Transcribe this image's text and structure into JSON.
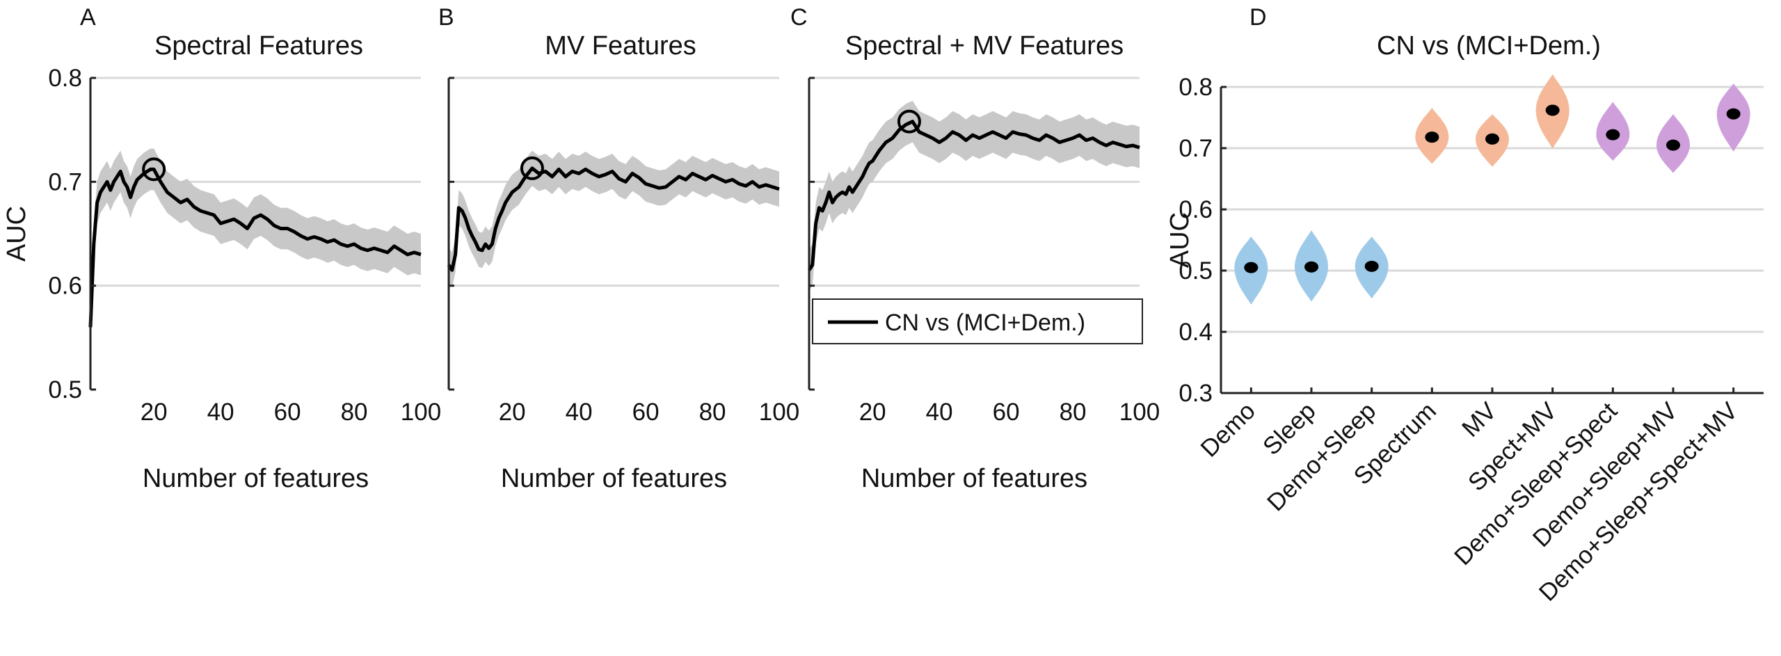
{
  "colors": {
    "line": "#000000",
    "band": "#c8c8c8",
    "grid": "#d9d9d9",
    "blue_violin": "#9ecae9",
    "orange_violin": "#f5b99a",
    "purple_violin": "#cf9fdc",
    "median_dot": "#000000"
  },
  "chart_data": [
    {
      "id": "A",
      "panel_letter": "A",
      "type": "line",
      "title": "Spectral Features",
      "xlabel": "Number of features",
      "ylabel": "AUC",
      "xlim": [
        1,
        100
      ],
      "ylim": [
        0.5,
        0.8
      ],
      "xticks": [
        20,
        40,
        60,
        80,
        100
      ],
      "yticks": [
        0.5,
        0.6,
        0.7,
        0.8
      ],
      "xtick_labels": [
        "20",
        "40",
        "60",
        "80",
        "100"
      ],
      "ytick_labels": [
        "0.5",
        "0.6",
        "0.7",
        "0.8"
      ],
      "grid": "horizontal",
      "band_halfwidth": 0.02,
      "marker": {
        "x": 20,
        "y": 0.712
      },
      "series": [
        {
          "name": "CN vs (MCI+Dem.)",
          "x": [
            1,
            2,
            3,
            4,
            5,
            6,
            7,
            8,
            9,
            10,
            11,
            12,
            13,
            14,
            15,
            16,
            17,
            18,
            19,
            20,
            22,
            24,
            26,
            28,
            30,
            32,
            34,
            36,
            38,
            40,
            42,
            44,
            46,
            48,
            50,
            52,
            54,
            56,
            58,
            60,
            62,
            64,
            66,
            68,
            70,
            72,
            74,
            76,
            78,
            80,
            82,
            84,
            86,
            88,
            90,
            92,
            94,
            96,
            98,
            100
          ],
          "y": [
            0.56,
            0.64,
            0.68,
            0.69,
            0.695,
            0.7,
            0.692,
            0.7,
            0.705,
            0.71,
            0.7,
            0.695,
            0.685,
            0.695,
            0.702,
            0.705,
            0.708,
            0.71,
            0.712,
            0.712,
            0.7,
            0.69,
            0.685,
            0.68,
            0.683,
            0.676,
            0.672,
            0.67,
            0.668,
            0.66,
            0.662,
            0.664,
            0.66,
            0.655,
            0.665,
            0.668,
            0.664,
            0.658,
            0.655,
            0.655,
            0.652,
            0.648,
            0.645,
            0.647,
            0.645,
            0.642,
            0.644,
            0.64,
            0.638,
            0.64,
            0.636,
            0.634,
            0.636,
            0.634,
            0.632,
            0.638,
            0.634,
            0.63,
            0.632,
            0.63
          ]
        }
      ]
    },
    {
      "id": "B",
      "panel_letter": "B",
      "type": "line",
      "title": "MV Features",
      "xlabel": "Number of features",
      "ylabel": "",
      "xlim": [
        1,
        100
      ],
      "ylim": [
        0.5,
        0.8
      ],
      "xticks": [
        20,
        40,
        60,
        80,
        100
      ],
      "yticks": [
        0.5,
        0.6,
        0.7,
        0.8
      ],
      "xtick_labels": [
        "20",
        "40",
        "60",
        "80",
        "100"
      ],
      "grid": "horizontal",
      "band_halfwidth": 0.017,
      "marker": {
        "x": 26,
        "y": 0.713
      },
      "series": [
        {
          "name": "CN vs (MCI+Dem.)",
          "x": [
            1,
            2,
            3,
            4,
            5,
            6,
            7,
            8,
            9,
            10,
            11,
            12,
            13,
            14,
            15,
            16,
            17,
            18,
            19,
            20,
            22,
            24,
            26,
            28,
            30,
            32,
            34,
            36,
            38,
            40,
            42,
            44,
            46,
            48,
            50,
            52,
            54,
            56,
            58,
            60,
            62,
            64,
            66,
            68,
            70,
            72,
            74,
            76,
            78,
            80,
            82,
            84,
            86,
            88,
            90,
            92,
            94,
            96,
            98,
            100
          ],
          "y": [
            0.62,
            0.615,
            0.63,
            0.675,
            0.672,
            0.665,
            0.655,
            0.648,
            0.642,
            0.635,
            0.634,
            0.64,
            0.636,
            0.64,
            0.655,
            0.665,
            0.672,
            0.68,
            0.685,
            0.69,
            0.695,
            0.705,
            0.713,
            0.708,
            0.71,
            0.705,
            0.712,
            0.705,
            0.71,
            0.708,
            0.712,
            0.708,
            0.705,
            0.707,
            0.71,
            0.703,
            0.7,
            0.708,
            0.704,
            0.698,
            0.696,
            0.694,
            0.695,
            0.7,
            0.705,
            0.702,
            0.708,
            0.705,
            0.702,
            0.706,
            0.703,
            0.7,
            0.702,
            0.698,
            0.696,
            0.7,
            0.695,
            0.697,
            0.695,
            0.693
          ]
        }
      ]
    },
    {
      "id": "C",
      "panel_letter": "C",
      "type": "line",
      "title": "Spectral + MV Features",
      "xlabel": "Number of features",
      "ylabel": "",
      "xlim": [
        1,
        100
      ],
      "ylim": [
        0.5,
        0.8
      ],
      "xticks": [
        20,
        40,
        60,
        80,
        100
      ],
      "yticks": [
        0.5,
        0.6,
        0.7,
        0.8
      ],
      "xtick_labels": [
        "20",
        "40",
        "60",
        "80",
        "100"
      ],
      "grid": "horizontal",
      "band_halfwidth": 0.02,
      "marker": {
        "x": 31,
        "y": 0.758
      },
      "legend": {
        "entries": [
          "CN vs (MCI+Dem.)"
        ],
        "position": "lower-right"
      },
      "series": [
        {
          "name": "CN vs (MCI+Dem.)",
          "x": [
            1,
            2,
            3,
            4,
            5,
            6,
            7,
            8,
            9,
            10,
            11,
            12,
            13,
            14,
            15,
            16,
            17,
            18,
            19,
            20,
            22,
            24,
            26,
            28,
            30,
            32,
            34,
            36,
            38,
            40,
            42,
            44,
            46,
            48,
            50,
            52,
            54,
            56,
            58,
            60,
            62,
            64,
            66,
            68,
            70,
            72,
            74,
            76,
            78,
            80,
            82,
            84,
            86,
            88,
            90,
            92,
            94,
            96,
            98,
            100
          ],
          "y": [
            0.615,
            0.62,
            0.66,
            0.675,
            0.672,
            0.68,
            0.69,
            0.68,
            0.685,
            0.688,
            0.69,
            0.688,
            0.695,
            0.69,
            0.695,
            0.7,
            0.705,
            0.712,
            0.718,
            0.72,
            0.73,
            0.738,
            0.742,
            0.75,
            0.755,
            0.758,
            0.748,
            0.745,
            0.742,
            0.738,
            0.742,
            0.748,
            0.745,
            0.74,
            0.745,
            0.742,
            0.745,
            0.748,
            0.745,
            0.742,
            0.748,
            0.746,
            0.745,
            0.742,
            0.74,
            0.745,
            0.742,
            0.738,
            0.74,
            0.742,
            0.745,
            0.74,
            0.742,
            0.738,
            0.735,
            0.738,
            0.736,
            0.734,
            0.735,
            0.733
          ]
        }
      ]
    },
    {
      "id": "D",
      "panel_letter": "D",
      "type": "violin",
      "title": "CN vs (MCI+Dem.)",
      "xlabel": "",
      "ylabel": "AUC",
      "ylim": [
        0.3,
        0.8
      ],
      "yticks": [
        0.3,
        0.4,
        0.5,
        0.6,
        0.7,
        0.8
      ],
      "ytick_labels": [
        "0.3",
        "0.4",
        "0.5",
        "0.6",
        "0.7",
        "0.8"
      ],
      "grid": "horizontal",
      "categories": [
        "Demo",
        "Sleep",
        "Demo+Sleep",
        "Spectrum",
        "MV",
        "Spect+MV",
        "Demo+Sleep+Spect",
        "Demo+Sleep+MV",
        "Demo+Sleep+Spect+MV"
      ],
      "medians": [
        0.505,
        0.506,
        0.507,
        0.718,
        0.715,
        0.762,
        0.722,
        0.705,
        0.756
      ],
      "ranges": [
        [
          0.445,
          0.555
        ],
        [
          0.45,
          0.565
        ],
        [
          0.455,
          0.555
        ],
        [
          0.675,
          0.765
        ],
        [
          0.67,
          0.755
        ],
        [
          0.7,
          0.82
        ],
        [
          0.68,
          0.775
        ],
        [
          0.66,
          0.755
        ],
        [
          0.695,
          0.805
        ]
      ],
      "groups": [
        "blue",
        "blue",
        "blue",
        "orange",
        "orange",
        "orange",
        "purple",
        "purple",
        "purple"
      ]
    }
  ]
}
